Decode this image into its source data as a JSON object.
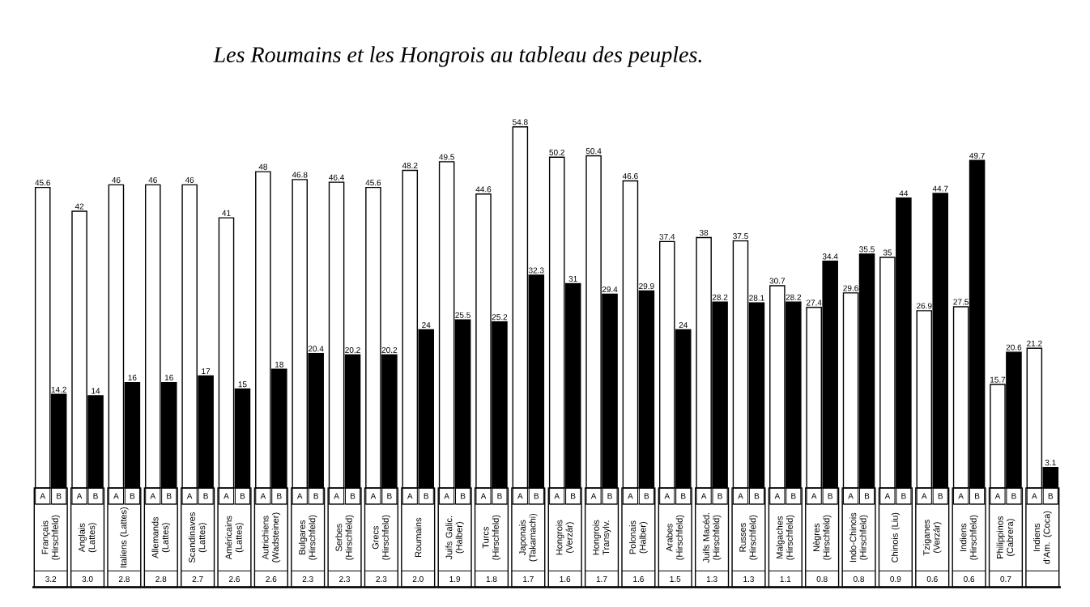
{
  "chart_data": {
    "type": "bar",
    "legend": "bottom",
    "title": "Les Roumains et les Hongrois au tableau des peuples.",
    "categories": [
      "Français (Hirschfeld)",
      "Anglais (Lattes)",
      "Italiens (Lattes)",
      "Allemands (Lattes)",
      "Scandinaves (Lattes)",
      "Américains (Lattes)",
      "Autrichiens (Wadsteiner)",
      "Bulgares (Hirschfeld)",
      "Serbes (Hirschfeld)",
      "Grecs (Hirschfeld)",
      "Roumains",
      "Juifs Galic. (Halber)",
      "Turcs (Hirschfeld)",
      "Japonais (Takamachi)",
      "Hongrois (Verzár)",
      "Hongrois Transylv.",
      "Polonais (Halber)",
      "Arabes (Hirschfeld)",
      "Juifs Macéd. (Hirschfeld)",
      "Russes (Hirschfeld)",
      "Malgaches (Hirschfeld)",
      "Nègres (Hirschfeld)",
      "Indo-Chinois (Hirschfeld)",
      "Chinois (Liu)",
      "Tziganes (Verzár)",
      "Indiens (Hirschfeld)",
      "Philippinos (Cabrera)",
      "Indiens d'Am. (Coca)"
    ],
    "series": [
      {
        "name": "A",
        "color": "#ffffff",
        "values": [
          45.6,
          42,
          46,
          46,
          46,
          41,
          48,
          46.8,
          46.4,
          45.6,
          48.2,
          49.5,
          44.6,
          54.8,
          50.2,
          50.4,
          46.6,
          37.4,
          38,
          37.5,
          30.7,
          27.4,
          29.6,
          35,
          26.9,
          27.5,
          15.7,
          21.2
        ],
        "value_labels": [
          "45.6",
          "42",
          "46",
          "46",
          "46",
          "41",
          "48",
          "46.8",
          "46.4",
          "45.6",
          "48.2",
          "49.5",
          "44.6",
          "54.8",
          "50.2",
          "50.4",
          "46.6",
          "37.4",
          "38",
          "37.5",
          "30.7",
          "27.4",
          "29.6",
          "35",
          "26.9",
          "27.5",
          "15.7",
          "21.2"
        ]
      },
      {
        "name": "B",
        "color": "#000000",
        "values": [
          14.2,
          14,
          16,
          16,
          17,
          15,
          18,
          20.4,
          20.2,
          20.2,
          24,
          25.5,
          25.2,
          32.3,
          31,
          29.4,
          29.9,
          24,
          28.2,
          28.1,
          28.2,
          34.4,
          35.5,
          44,
          44.7,
          49.7,
          20.6,
          3.1
        ],
        "value_labels": [
          "14.2",
          "14",
          "16",
          "16",
          "17",
          "15",
          "18",
          "20.4",
          "20.2",
          "20.2",
          "24",
          "25.5",
          "25.2",
          "32.3",
          "31",
          "29.4",
          "29.9",
          "24",
          "28.2",
          "28.1",
          "28.2",
          "34.4",
          "35.5",
          "44",
          "44.7",
          "49.7",
          "20.6",
          "3.1"
        ]
      }
    ],
    "annotations": [
      "3.2",
      "3.0",
      "2.8",
      "2.8",
      "2.7",
      "2.6",
      "2.6",
      "2.3",
      "2.3",
      "2.3",
      "2.0",
      "1.9",
      "1.8",
      "1.7",
      "1.6",
      "1.7",
      "1.6",
      "1.5",
      "1.3",
      "1.3",
      "1.1",
      "0.8",
      "0.8",
      "0.9",
      "0.6",
      "0.6",
      "0.7"
    ]
  }
}
